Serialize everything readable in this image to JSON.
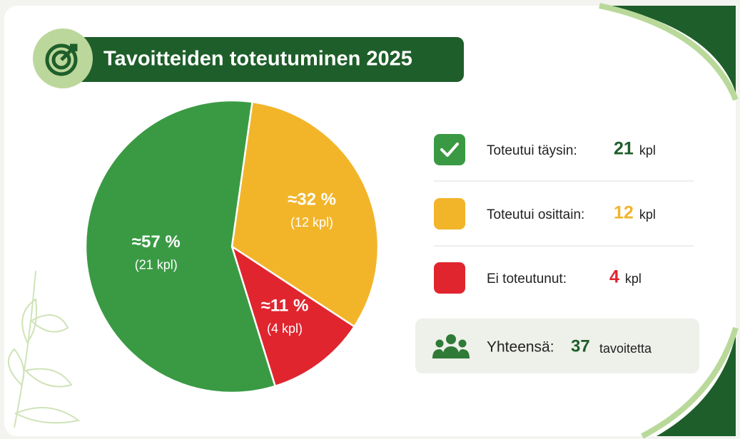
{
  "chart_data": {
    "type": "pie",
    "title": "Tavoitteiden toteutuminen 2025",
    "categories": [
      "Toteutui täysin:",
      "Toteutui osittain:",
      "Ei toteutunut:"
    ],
    "values": [
      57,
      32,
      11
    ],
    "value_labels": [
      "≈57 %",
      "≈32 %",
      "≈11 %"
    ],
    "counts": [
      21,
      12,
      4
    ],
    "count_labels": [
      "(21 kpl)",
      "(12 kpl)",
      "(4 kpl)"
    ],
    "unit": "kpl",
    "colors": [
      "#3a9a44",
      "#f2b52a",
      "#e0252f"
    ],
    "total": {
      "label": "Yhteensä:",
      "value": 37,
      "unit": "tavoitetta"
    }
  }
}
